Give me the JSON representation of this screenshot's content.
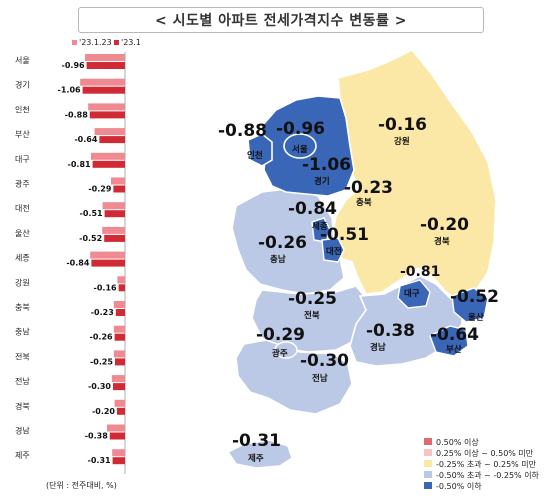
{
  "title": "< 시도별 아파트 전세가격지수 변동률 >",
  "unit_note": "(단위 : 전주대비, %)",
  "colors": {
    "prev_week": "#ef8a92",
    "this_week": "#d12a35",
    "level_top": "#e06a72",
    "level_2": "#f6c3c8",
    "level_mid": "#fbe8a6",
    "level_4": "#bcc9e6",
    "level_low": "#3a66b8"
  },
  "chart_data": {
    "type": "bar",
    "orientation": "horizontal",
    "categories": [
      "서울",
      "경기",
      "인천",
      "부산",
      "대구",
      "광주",
      "대전",
      "울산",
      "세종",
      "강원",
      "충북",
      "충남",
      "전북",
      "전남",
      "경북",
      "경남",
      "제주"
    ],
    "series": [
      {
        "name": "'23.1.23",
        "values": [
          -1.0,
          -1.12,
          -0.92,
          -0.76,
          -0.85,
          -0.35,
          -0.56,
          -0.57,
          -0.87,
          -0.19,
          -0.28,
          -0.28,
          -0.28,
          -0.33,
          -0.26,
          -0.45,
          -0.32
        ]
      },
      {
        "name": "'23.1.30",
        "values": [
          -0.96,
          -1.06,
          -0.88,
          -0.64,
          -0.81,
          -0.29,
          -0.51,
          -0.52,
          -0.84,
          -0.16,
          -0.23,
          -0.26,
          -0.25,
          -0.3,
          -0.2,
          -0.38,
          -0.31
        ]
      }
    ],
    "value_labels": [
      "-0.96",
      "-1.06",
      "-0.88",
      "-0.64",
      "-0.81",
      "-0.29",
      "-0.51",
      "-0.52",
      "-0.84",
      "-0.16",
      "-0.23",
      "-0.26",
      "-0.25",
      "-0.30",
      "-0.20",
      "-0.38",
      "-0.31"
    ],
    "legend": [
      "'23.1.23",
      "'23.1.30"
    ],
    "legend_position": "top"
  },
  "map": {
    "regions": [
      {
        "name": "서울",
        "value": "-0.96"
      },
      {
        "name": "인천",
        "value": "-0.88"
      },
      {
        "name": "경기",
        "value": "-1.06"
      },
      {
        "name": "강원",
        "value": "-0.16"
      },
      {
        "name": "충북",
        "value": "-0.23"
      },
      {
        "name": "세종",
        "value": "-0.84"
      },
      {
        "name": "대전",
        "value": "-0.51"
      },
      {
        "name": "충남",
        "value": "-0.26"
      },
      {
        "name": "경북",
        "value": "-0.20"
      },
      {
        "name": "대구",
        "value": "-0.81"
      },
      {
        "name": "울산",
        "value": "-0.52"
      },
      {
        "name": "전북",
        "value": "-0.25"
      },
      {
        "name": "경남",
        "value": "-0.38"
      },
      {
        "name": "부산",
        "value": "-0.64"
      },
      {
        "name": "광주",
        "value": "-0.29"
      },
      {
        "name": "전남",
        "value": "-0.30"
      },
      {
        "name": "제주",
        "value": "-0.31"
      }
    ],
    "legend": [
      "0.50% 이상",
      "0.25% 이상 ~ 0.50% 미만",
      "-0.25% 초과 ~ 0.25% 미만",
      "-0.50% 초과 ~ -0.25% 이하",
      "-0.50% 이하"
    ]
  }
}
